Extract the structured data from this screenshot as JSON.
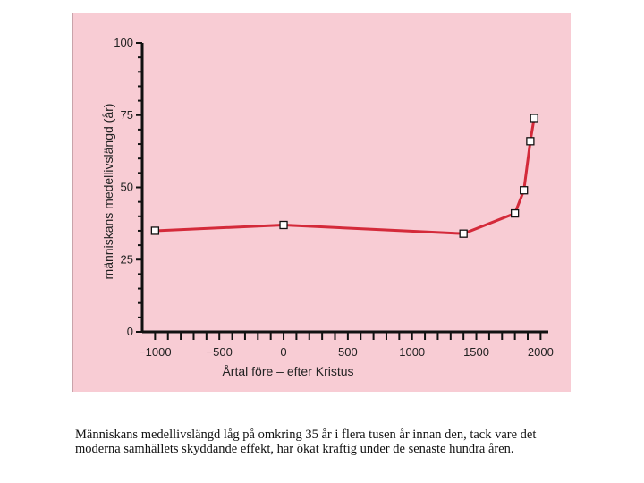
{
  "chart_data": {
    "type": "line",
    "xlabel": "Årtal före – efter Kristus",
    "ylabel": "människans medellivslängd (år)",
    "xlim": [
      -1100,
      2060
    ],
    "ylim": [
      0,
      100
    ],
    "x_ticks": [
      -1000,
      -500,
      0,
      500,
      1000,
      1500,
      2000
    ],
    "x_tick_labels": [
      "−1000",
      "−500",
      "0",
      "500",
      "1000",
      "1500",
      "2000"
    ],
    "y_ticks": [
      0,
      25,
      50,
      75,
      100
    ],
    "y_tick_labels": [
      "0",
      "25",
      "50",
      "75",
      "100"
    ],
    "grid": false,
    "series": [
      {
        "x": [
          -1000,
          0,
          1400,
          1800,
          1870,
          1920,
          1950
        ],
        "y": [
          35,
          37,
          34,
          41,
          49,
          66,
          74
        ]
      }
    ],
    "colors": {
      "line": "#d42a3a",
      "marker_fill": "#ffffff",
      "marker_stroke": "#111111",
      "axis": "#111111"
    }
  },
  "caption": "Människans medellivslängd låg på omkring 35 år i flera tusen år innan den, tack vare det moderna samhällets skyddande effekt, har ökat kraftig under de senaste hundra åren."
}
